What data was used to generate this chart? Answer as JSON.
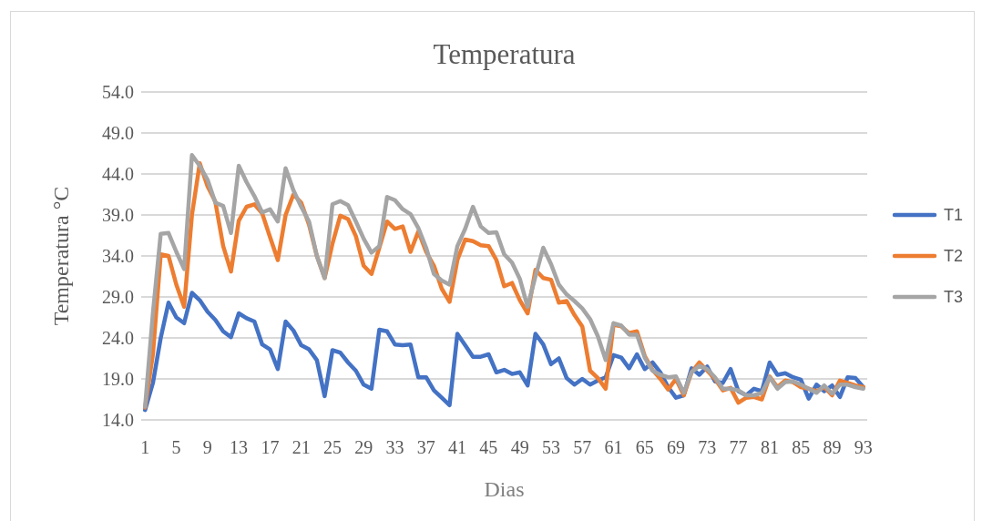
{
  "chart_data": {
    "type": "line",
    "title": "Temperatura",
    "xlabel": "Dias",
    "ylabel": "Temperatura °C",
    "categories": [
      "1",
      null,
      null,
      null,
      "5",
      null,
      null,
      null,
      "9",
      null,
      null,
      null,
      "13",
      null,
      null,
      null,
      "17",
      null,
      null,
      null,
      "21",
      null,
      null,
      null,
      "25",
      null,
      null,
      null,
      "29",
      null,
      null,
      null,
      "33",
      null,
      null,
      null,
      "37",
      null,
      null,
      null,
      "41",
      null,
      null,
      null,
      "45",
      null,
      null,
      null,
      "49",
      null,
      null,
      null,
      "53",
      null,
      null,
      null,
      "57",
      null,
      null,
      null,
      "61",
      null,
      null,
      null,
      "65",
      null,
      null,
      null,
      "69",
      null,
      null,
      null,
      "73",
      null,
      null,
      null,
      "77",
      null,
      null,
      null,
      "81",
      null,
      null,
      null,
      "85",
      null,
      null,
      null,
      "89",
      null,
      null,
      null,
      "93"
    ],
    "series": [
      {
        "name": "T1",
        "color": "#4472c4",
        "values": [
          15.2,
          18.5,
          24,
          28.3,
          26.5,
          25.8,
          29.5,
          28.6,
          27.2,
          26.2,
          24.8,
          24.1,
          27.0,
          26.4,
          26.0,
          23.2,
          22.6,
          20.2,
          26.0,
          24.9,
          23.1,
          22.6,
          21.3,
          16.9,
          22.5,
          22.2,
          21.0,
          20.0,
          18.3,
          17.8,
          25.0,
          24.8,
          23.2,
          23.1,
          23.2,
          19.2,
          19.2,
          17.6,
          16.7,
          15.8,
          24.5,
          23.1,
          21.7,
          21.7,
          22.0,
          19.8,
          20.1,
          19.6,
          19.8,
          18.2,
          24.5,
          23.2,
          20.8,
          21.5,
          19.1,
          18.3,
          19.0,
          18.3,
          18.8,
          19.2,
          21.9,
          21.6,
          20.3,
          22.0,
          20.2,
          21.0,
          19.8,
          18.0,
          16.7,
          17.0,
          20.3,
          19.5,
          20.5,
          18.7,
          18.5,
          20.2,
          17.5,
          17.0,
          17.8,
          17.5,
          21.0,
          19.5,
          19.7,
          19.2,
          18.9,
          16.6,
          18.3,
          17.5,
          18.2,
          16.8,
          19.2,
          19.1,
          18.0
        ]
      },
      {
        "name": "T2",
        "color": "#ed7d31",
        "values": [
          15.5,
          22,
          34.2,
          34.0,
          30.5,
          27.8,
          39,
          45.3,
          42.5,
          40.6,
          35.2,
          32.1,
          38.3,
          40.0,
          40.3,
          39.2,
          36.3,
          33.5,
          39.0,
          41.5,
          40.5,
          37.8,
          34.0,
          31.3,
          35.5,
          38.9,
          38.5,
          36.4,
          32.8,
          31.8,
          35.0,
          38.2,
          37.3,
          37.6,
          34.5,
          37.0,
          34.5,
          32.8,
          30.0,
          28.4,
          33.5,
          36.0,
          35.8,
          35.3,
          35.2,
          33.5,
          30.3,
          30.7,
          28.6,
          27.0,
          32.3,
          31.3,
          31.1,
          28.3,
          28.5,
          26.8,
          25.4,
          20.0,
          19.1,
          17.8,
          25.6,
          25.4,
          24.6,
          24.8,
          21.8,
          20.1,
          19.0,
          17.7,
          19.0,
          17.0,
          19.8,
          21.0,
          20.0,
          19.0,
          17.6,
          17.9,
          16.1,
          16.7,
          16.8,
          16.5,
          19.3,
          18.0,
          18.8,
          18.6,
          18.0,
          17.8,
          17.5,
          18.0,
          17.0,
          18.8,
          18.5,
          18.2,
          18.0
        ]
      },
      {
        "name": "T3",
        "color": "#a5a5a5",
        "values": [
          15.6,
          27,
          36.7,
          36.8,
          34.5,
          32.4,
          46.3,
          45.0,
          43.3,
          40.5,
          40.1,
          36.8,
          45.0,
          43.0,
          41.3,
          39.3,
          39.7,
          38.2,
          44.7,
          42.0,
          40.0,
          38.2,
          34.0,
          31.3,
          40.3,
          40.7,
          40.2,
          38.2,
          36.1,
          34.4,
          35.2,
          41.2,
          40.8,
          39.7,
          39.1,
          37.4,
          35.0,
          31.8,
          31.0,
          30.5,
          35.2,
          37.3,
          40.0,
          37.6,
          36.8,
          36.9,
          34.2,
          33.2,
          31.2,
          27.8,
          31.5,
          35.0,
          33.0,
          30.5,
          29.3,
          28.5,
          27.6,
          26.3,
          24.2,
          21.3,
          25.8,
          25.5,
          24.4,
          24.4,
          21.6,
          20.0,
          19.5,
          19.2,
          19.3,
          17.3,
          19.8,
          20.6,
          20.2,
          19.2,
          17.8,
          17.8,
          17.6,
          17.0,
          17.0,
          17.3,
          19.2,
          17.8,
          18.6,
          18.7,
          18.3,
          17.8,
          17.3,
          18.2,
          17.2,
          18.3,
          18.3,
          18.0,
          17.8
        ]
      }
    ],
    "ylim": [
      14,
      54
    ],
    "yticks": [
      {
        "value": 14,
        "label": "14.0"
      },
      {
        "value": 19,
        "label": "19.0"
      },
      {
        "value": 24,
        "label": "24.0"
      },
      {
        "value": 29,
        "label": "29.0"
      },
      {
        "value": 34,
        "label": "34.0"
      },
      {
        "value": 39,
        "label": "39.0"
      },
      {
        "value": 44,
        "label": "44.0"
      },
      {
        "value": 49,
        "label": "49.0"
      },
      {
        "value": 54,
        "label": "54.0"
      }
    ],
    "grid": "y",
    "legend": "right"
  }
}
